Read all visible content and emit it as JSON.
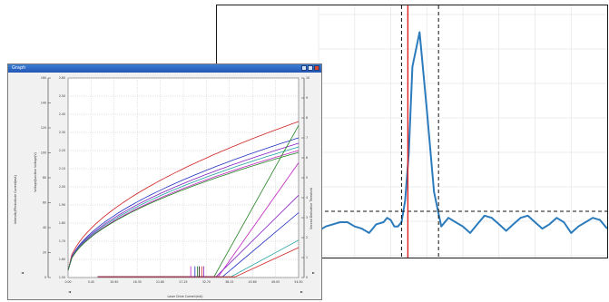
{
  "back_chart": {
    "type": "line",
    "series": [
      {
        "color": "#2b7bbd",
        "x": [
          0,
          8,
          16,
          24,
          32,
          40,
          48,
          56,
          64,
          72,
          76,
          80,
          84,
          88,
          92,
          96,
          100,
          104,
          112,
          120,
          128,
          136,
          144,
          152,
          160,
          168,
          176,
          184,
          192,
          200,
          208,
          216,
          224,
          232,
          240,
          248,
          256,
          264,
          272,
          280,
          288,
          296,
          304,
          312,
          320
        ],
        "y": [
          4,
          6,
          7,
          8,
          8,
          6,
          5,
          3,
          7,
          8,
          10,
          9,
          6,
          6,
          8,
          18,
          40,
          80,
          96,
          60,
          22,
          6,
          10,
          8,
          6,
          3,
          7,
          11,
          10,
          7,
          4,
          7,
          10,
          11,
          8,
          5,
          7,
          10,
          8,
          3,
          6,
          8,
          10,
          9,
          5
        ]
      }
    ],
    "xlim": [
      0,
      320
    ],
    "ylim": [
      0,
      100
    ],
    "marker_x": [
      92,
      99,
      133
    ],
    "threshold_y": 13,
    "grid": true,
    "colors": {
      "series": "#2b7bbd",
      "marker": "#e02020",
      "dashed": "#111111",
      "grid": "#e6e6e6"
    }
  },
  "front_window": {
    "title": "Graph",
    "left_axis_title": "Intensity/Photodiode Current(mA)",
    "left_axis_title2": "Voltage/Junction Voltage(V)",
    "right_axis_title": "Second Derivative Threshold",
    "x_axis_title": "Laser Drive Current(mA)"
  },
  "chart_data": {
    "type": "line",
    "xlabel": "Laser Drive Current(mA)",
    "ylabel": "Intensity/Photodiode Current(mA)",
    "x_ticks": [
      "0.00",
      "5.45",
      "10.90",
      "16.35",
      "21.80",
      "27.25",
      "32.70",
      "38.15",
      "43.60",
      "49.05",
      "54.50"
    ],
    "left_ticks": [
      "0",
      "20",
      "40",
      "60",
      "80",
      "100",
      "120",
      "140",
      "160"
    ],
    "mid_ticks": [
      "1.50",
      "1.60",
      "1.70",
      "1.80",
      "1.90",
      "2.00",
      "2.10",
      "2.20",
      "2.30",
      "2.40",
      "2.50",
      "2.60"
    ],
    "right_ticks": [
      "0",
      "1",
      "2",
      "3",
      "4",
      "5",
      "6",
      "7",
      "8",
      "9",
      "10"
    ],
    "xlim": [
      0,
      54.5
    ],
    "ylim": [
      0,
      160
    ],
    "voltage_series": [
      {
        "color": "#d02020",
        "v_end": 2.36
      },
      {
        "color": "#2030c0",
        "v_end": 2.27
      },
      {
        "color": "#8020c0",
        "v_end": 2.24
      },
      {
        "color": "#20a0a0",
        "v_end": 2.22
      },
      {
        "color": "#c020c0",
        "v_end": 2.2
      },
      {
        "color": "#208020",
        "v_end": 2.19
      }
    ],
    "light_series": [
      {
        "color": "#208020",
        "threshold": 34.5,
        "end": 122
      },
      {
        "color": "#c020c0",
        "threshold": 35.5,
        "end": 92
      },
      {
        "color": "#8020c0",
        "threshold": 35.0,
        "end": 66
      },
      {
        "color": "#2030c0",
        "threshold": 36.5,
        "end": 52
      },
      {
        "color": "#20a0a0",
        "threshold": 38.5,
        "end": 30
      },
      {
        "color": "#d02020",
        "threshold": 39.5,
        "end": 24
      }
    ],
    "threshold_markers": [
      {
        "color": "#c020c0",
        "x": 29.0
      },
      {
        "color": "#2030c0",
        "x": 30.0
      },
      {
        "color": "#208020",
        "x": 30.6
      },
      {
        "color": "#111111",
        "x": 31.0
      },
      {
        "color": "#d02020",
        "x": 31.6
      },
      {
        "color": "#8020c0",
        "x": 32.1
      }
    ],
    "grid": true
  }
}
